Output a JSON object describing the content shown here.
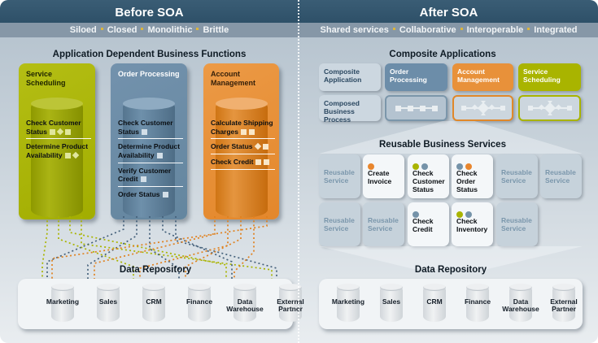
{
  "colors": {
    "green": "#a9b400",
    "blue": "#7593a9",
    "orange": "#e8862e"
  },
  "header": {
    "before": {
      "title": "Before SOA",
      "tags": [
        "Siloed",
        "Closed",
        "Monolithic",
        "Brittle"
      ]
    },
    "after": {
      "title": "After SOA",
      "tags": [
        "Shared services",
        "Collaborative",
        "Interoperable",
        "Integrated"
      ]
    }
  },
  "left": {
    "section_title": "Application Dependent Business Functions",
    "apps": [
      {
        "name": "Service Scheduling",
        "items": [
          {
            "label": "Check Customer Status",
            "markers": [
              "sq",
              "di",
              "sq"
            ]
          },
          {
            "label": "Determine Product Availability",
            "markers": [
              "sq",
              "di"
            ]
          }
        ]
      },
      {
        "name": "Order Processing",
        "items": [
          {
            "label": "Check Customer Status",
            "markers": [
              "sq"
            ]
          },
          {
            "label": "Determine Product Availability",
            "markers": [
              "sq"
            ]
          },
          {
            "label": "Verify Customer Credit",
            "markers": [
              "sq"
            ]
          },
          {
            "label": "Order Status",
            "markers": [
              "sq"
            ]
          }
        ]
      },
      {
        "name": "Account Management",
        "items": [
          {
            "label": "Calculate Shipping Charges",
            "markers": [
              "sq",
              "sq"
            ]
          },
          {
            "label": "Order Status",
            "markers": [
              "di",
              "sq"
            ]
          },
          {
            "label": "Check Credit",
            "markers": [
              "sq",
              "sq"
            ]
          }
        ]
      }
    ],
    "repository": {
      "title": "Data Repository",
      "stores": [
        "Marketing",
        "Sales",
        "CRM",
        "Finance",
        "Data Warehouse",
        "External Partner"
      ]
    }
  },
  "right": {
    "composite": {
      "title": "Composite Applications",
      "row1": [
        "Composite Application",
        "Order Processing",
        "Account Management",
        "Service Scheduling"
      ],
      "row2_label": "Composed Business Process"
    },
    "services": {
      "title": "Reusable Business Services",
      "row1": [
        {
          "label": "Reusable Service"
        },
        {
          "label": "Create Invoice",
          "dots": [
            "orange"
          ]
        },
        {
          "label": "Check Customer Status",
          "dots": [
            "green",
            "blue"
          ]
        },
        {
          "label": "Check Order Status",
          "dots": [
            "blue",
            "orange"
          ]
        },
        {
          "label": "Reusable Service"
        },
        {
          "label": "Reusable Service"
        }
      ],
      "row2": [
        {
          "label": "Reusable Service"
        },
        {
          "label": "Reusable Service"
        },
        {
          "label": "Check Credit",
          "dots": [
            "blue"
          ]
        },
        {
          "label": "Check Inventory",
          "dots": [
            "green",
            "blue"
          ]
        },
        {
          "label": "Reusable Service"
        }
      ]
    },
    "repository": {
      "title": "Data Repository",
      "stores": [
        "Marketing",
        "Sales",
        "CRM",
        "Finance",
        "Data Warehouse",
        "External Partner"
      ]
    }
  }
}
